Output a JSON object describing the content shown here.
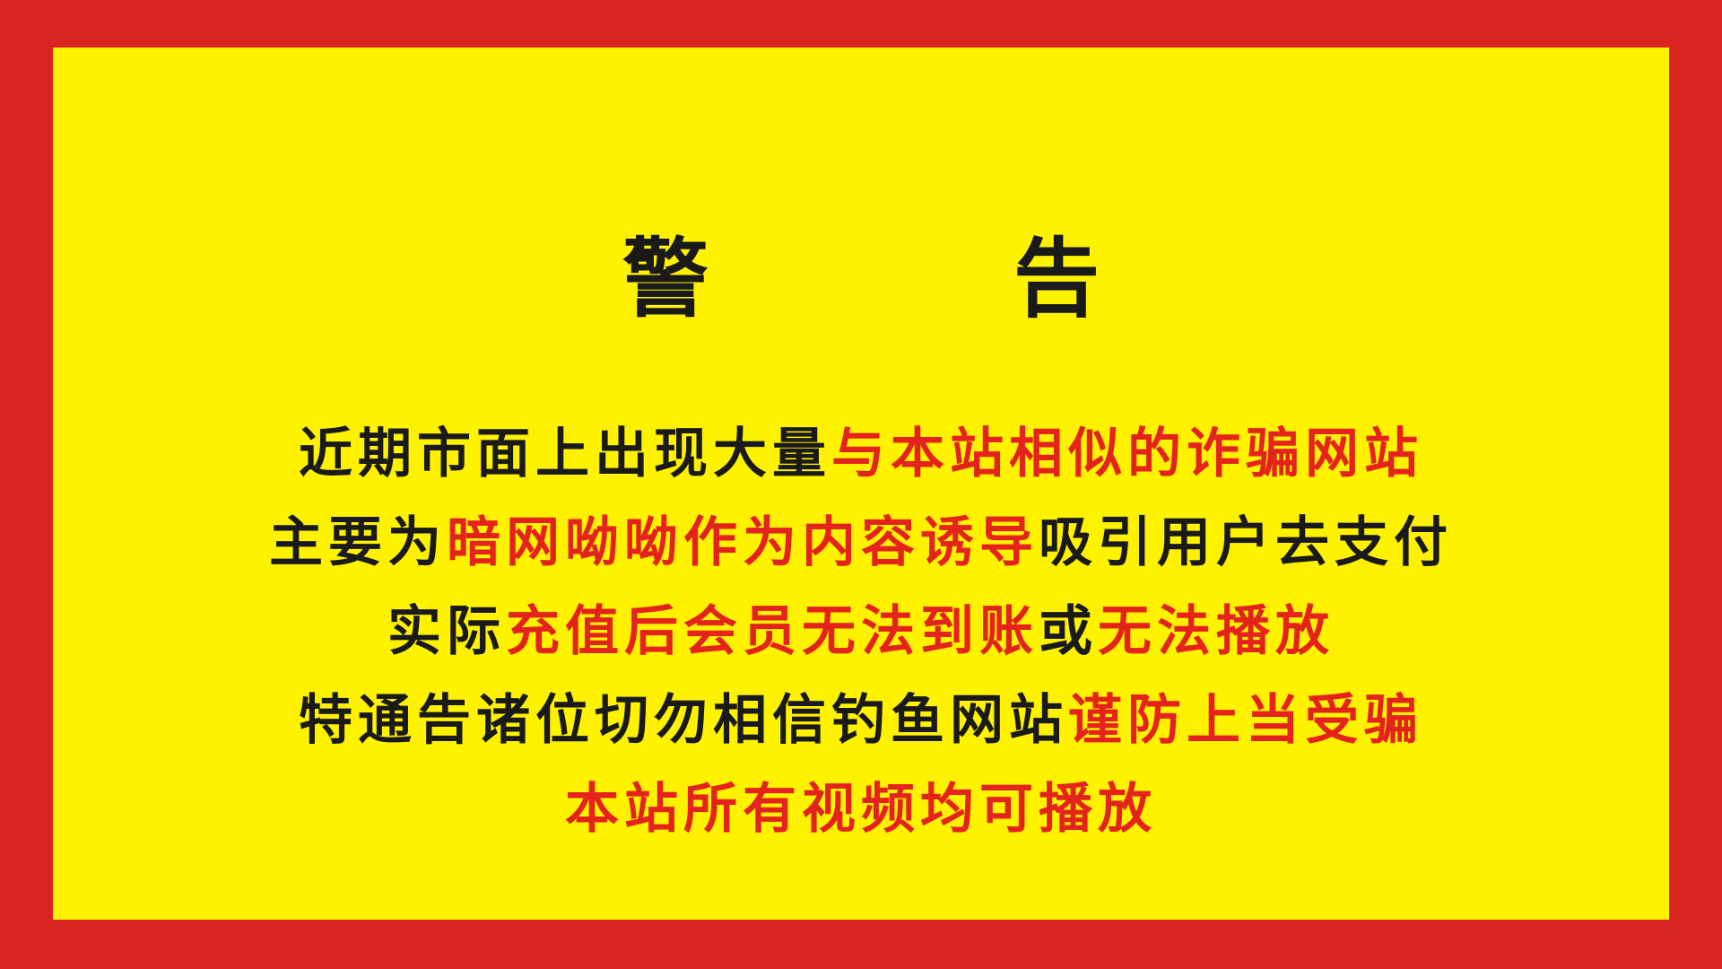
{
  "notice": {
    "title_left": "警",
    "title_right": "告",
    "colors": {
      "border": "#da2420",
      "background": "#fff200",
      "text": "#1a1a1a",
      "highlight": "#e3231c"
    },
    "lines": [
      {
        "black": "近期市面上出现大量",
        "red": "与本站相似的诈骗网站"
      },
      {
        "black1": "主要为",
        "red": "暗网呦呦作为内容诱导",
        "black2": "吸引用户去支付"
      },
      {
        "black1": "实际",
        "red1": "充值后会员无法到账",
        "black2": "或",
        "red2": "无法播放"
      },
      {
        "black": "特通告诸位切勿相信钓鱼网站",
        "red": "谨防上当受骗"
      },
      {
        "red": "本站所有视频均可播放"
      }
    ]
  }
}
